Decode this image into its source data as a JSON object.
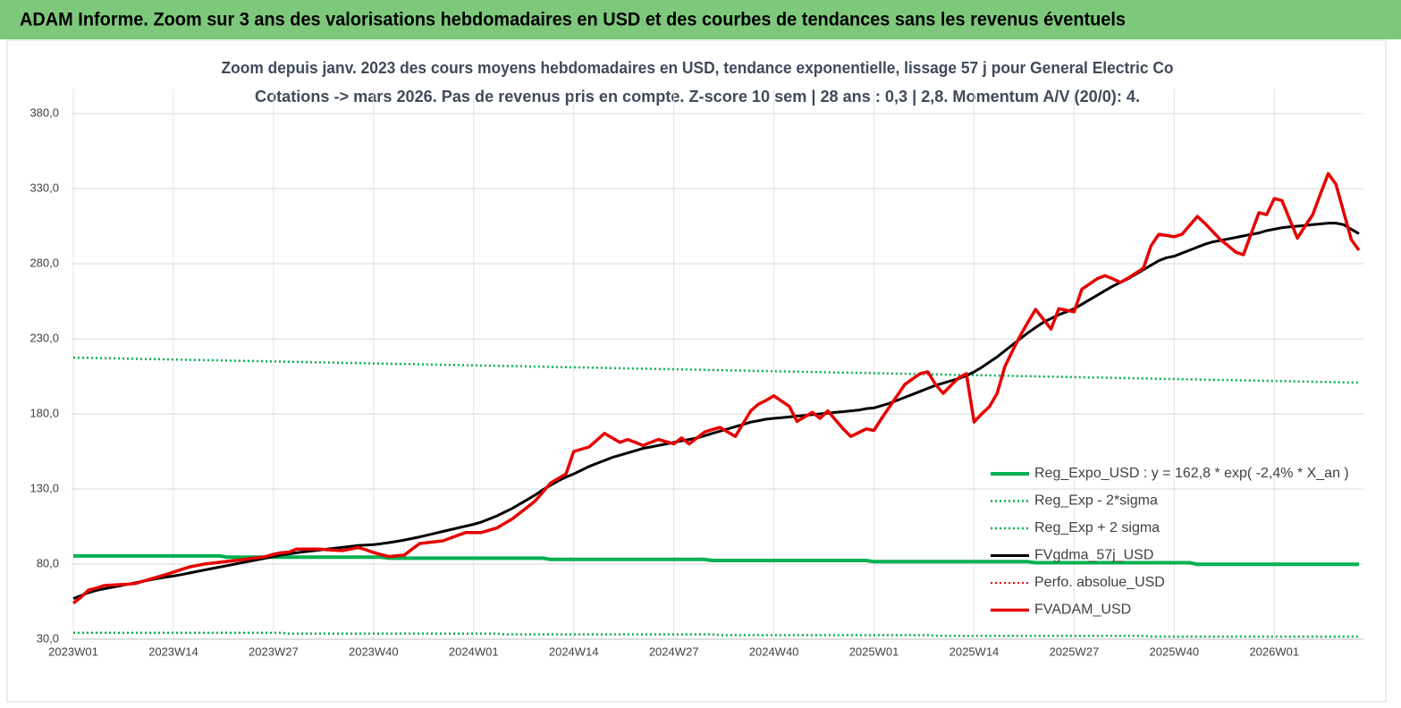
{
  "chart_data": {
    "type": "line",
    "title": "ADAM Informe. Zoom sur 3 ans des valorisations hebdomadaires en USD et des courbes de tendances sans les revenus éventuels",
    "subtitle": [
      "Zoom depuis janv. 2023 des cours moyens hebdomadaires en USD, tendance exponentielle, lissage 57 j pour General Electric Co",
      "Cotations -> mars 2026. Pas de revenus pris en  compte. Z-score 10 sem  | 28 ans : 0,3  | 2,8. Momentum A/V (20/0): 4."
    ],
    "categories": [
      "2023W01",
      null,
      null,
      null,
      null,
      null,
      null,
      null,
      null,
      null,
      null,
      null,
      null,
      "2023W14",
      null,
      null,
      null,
      null,
      null,
      null,
      null,
      null,
      null,
      null,
      null,
      null,
      "2023W27",
      null,
      null,
      null,
      null,
      null,
      null,
      null,
      null,
      null,
      null,
      null,
      null,
      "2023W40",
      null,
      null,
      null,
      null,
      null,
      null,
      null,
      null,
      null,
      null,
      null,
      null,
      "2024W01",
      null,
      null,
      null,
      null,
      null,
      null,
      null,
      null,
      null,
      null,
      null,
      null,
      "2024W14",
      null,
      null,
      null,
      null,
      null,
      null,
      null,
      null,
      null,
      null,
      null,
      null,
      "2024W27",
      null,
      null,
      null,
      null,
      null,
      null,
      null,
      null,
      null,
      null,
      null,
      null,
      "2024W40",
      null,
      null,
      null,
      null,
      null,
      null,
      null,
      null,
      null,
      null,
      null,
      null,
      "2025W01",
      null,
      null,
      null,
      null,
      null,
      null,
      null,
      null,
      null,
      null,
      null,
      null,
      "2025W14",
      null,
      null,
      null,
      null,
      null,
      null,
      null,
      null,
      null,
      null,
      null,
      null,
      "2025W27",
      null,
      null,
      null,
      null,
      null,
      null,
      null,
      null,
      null,
      null,
      null,
      null,
      "2025W40",
      null,
      null,
      null,
      null,
      null,
      null,
      null,
      null,
      null,
      null,
      null,
      null,
      "2026W01",
      null,
      null,
      null,
      null,
      null,
      null,
      null,
      null,
      null,
      null,
      null
    ],
    "ylim": [
      30,
      380
    ],
    "yticks": [
      {
        "value": 30,
        "label": "30,0"
      },
      {
        "value": 80,
        "label": "80,0"
      },
      {
        "value": 130,
        "label": "130,0"
      },
      {
        "value": 180,
        "label": "180,0"
      },
      {
        "value": 230,
        "label": "230,0"
      },
      {
        "value": 280,
        "label": "280,0"
      },
      {
        "value": 330,
        "label": "330,0"
      },
      {
        "value": 380,
        "label": "380,0"
      }
    ],
    "grid": true,
    "legend": "bottom-right",
    "series": [
      {
        "name": "Reg_Expo_USD : y = 162,8 * exp( -2,4% *  X_an )",
        "color": "#00b050",
        "style": "solid",
        "width": 4,
        "values": [
          85.4,
          85.4,
          85.4,
          85.4,
          85.4,
          85.4,
          85.4,
          85.4,
          85.4,
          85.4,
          85.4,
          85.4,
          85.4,
          85.4,
          85.4,
          85.4,
          85.4,
          85.4,
          85.4,
          85.4,
          84.6,
          84.6,
          84.6,
          84.6,
          84.6,
          84.6,
          84.6,
          84.6,
          84.6,
          84.6,
          84.6,
          84.6,
          84.6,
          84.6,
          84.6,
          84.6,
          84.6,
          84.6,
          84.6,
          84.6,
          84.6,
          83.9,
          83.9,
          83.9,
          83.9,
          83.9,
          83.9,
          83.9,
          83.9,
          83.9,
          83.9,
          83.9,
          83.9,
          83.9,
          83.9,
          83.9,
          83.9,
          83.9,
          83.9,
          83.9,
          83.9,
          83.9,
          83.1,
          83.1,
          83.1,
          83.1,
          83.1,
          83.1,
          83.1,
          83.1,
          83.1,
          83.1,
          83.1,
          83.1,
          83.1,
          83.1,
          83.1,
          83.1,
          83.1,
          83.1,
          83.1,
          83.1,
          83.1,
          82.4,
          82.4,
          82.4,
          82.4,
          82.4,
          82.4,
          82.4,
          82.4,
          82.4,
          82.4,
          82.4,
          82.4,
          82.4,
          82.4,
          82.4,
          82.4,
          82.4,
          82.4,
          82.4,
          82.4,
          82.4,
          81.6,
          81.6,
          81.6,
          81.6,
          81.6,
          81.6,
          81.6,
          81.6,
          81.6,
          81.6,
          81.6,
          81.6,
          81.6,
          81.6,
          81.6,
          81.6,
          81.6,
          81.6,
          81.6,
          81.6,
          81.6,
          80.9,
          80.9,
          80.9,
          80.9,
          80.9,
          80.9,
          80.9,
          80.9,
          80.9,
          80.9,
          80.9,
          80.9,
          80.9,
          80.9,
          80.9,
          80.9,
          80.9,
          80.9,
          80.9,
          80.9,
          80.9,
          79.8,
          79.8,
          79.8,
          79.8,
          79.8,
          79.8,
          79.8,
          79.8,
          79.8,
          79.8,
          79.8,
          79.8,
          79.8,
          79.8,
          79.8,
          79.8,
          79.8,
          79.8,
          79.8,
          79.8,
          79.8,
          79.8
        ]
      },
      {
        "name": "Reg_Exp - 2*sigma",
        "color": "#00b050",
        "style": "dotted",
        "width": 2.5,
        "values": [
          34.2,
          34.2,
          34.2,
          34.2,
          34.2,
          34.2,
          34.2,
          34.2,
          34.2,
          34.2,
          34.2,
          34.2,
          34.2,
          34.2,
          34.2,
          34.2,
          34.2,
          34.2,
          34.2,
          34.2,
          34.2,
          34.2,
          34.2,
          34.2,
          34.2,
          34.2,
          34.2,
          34.2,
          33.7,
          33.7,
          33.7,
          33.7,
          33.7,
          33.7,
          33.7,
          33.7,
          33.7,
          33.7,
          33.7,
          33.7,
          33.7,
          33.7,
          33.7,
          33.7,
          33.7,
          33.7,
          33.7,
          33.7,
          33.7,
          33.7,
          33.7,
          33.7,
          33.7,
          33.7,
          33.7,
          33.7,
          33.2,
          33.2,
          33.2,
          33.2,
          33.2,
          33.2,
          33.2,
          33.2,
          33.2,
          33.2,
          33.2,
          33.2,
          33.2,
          33.2,
          33.2,
          33.2,
          33.2,
          33.2,
          33.2,
          33.2,
          33.2,
          33.2,
          33.2,
          33.2,
          33.2,
          33.2,
          33.2,
          33.2,
          32.7,
          32.7,
          32.7,
          32.7,
          32.7,
          32.7,
          32.7,
          32.7,
          32.7,
          32.7,
          32.7,
          32.7,
          32.7,
          32.7,
          32.7,
          32.7,
          32.7,
          32.7,
          32.7,
          32.7,
          32.7,
          32.7,
          32.7,
          32.7,
          32.7,
          32.7,
          32.7,
          32.7,
          32.2,
          32.2,
          32.2,
          32.2,
          32.2,
          32.2,
          32.2,
          32.2,
          32.2,
          32.2,
          32.2,
          32.2,
          32.2,
          32.2,
          32.2,
          32.2,
          32.2,
          32.2,
          32.2,
          32.2,
          32.2,
          32.2,
          32.2,
          32.2,
          32.2,
          32.2,
          32.2,
          32.2,
          31.7,
          31.7,
          31.7,
          31.7,
          31.7,
          31.7,
          31.7,
          31.7,
          31.7,
          31.7,
          31.7,
          31.7,
          31.7,
          31.7,
          31.7,
          31.7,
          31.7,
          31.7,
          31.7,
          31.7,
          31.7,
          31.7,
          31.7,
          31.7,
          31.7,
          31.7,
          31.7,
          31.7
        ]
      },
      {
        "name": "Reg_Exp + 2 sigma",
        "color": "#00b050",
        "style": "dotted",
        "width": 2.5,
        "values": [
          217.5,
          217.4,
          217.3,
          217.2,
          217.1,
          217,
          216.9,
          216.8,
          216.7,
          216.6,
          216.5,
          216.4,
          216.3,
          216.2,
          216.1,
          216,
          215.9,
          215.8,
          215.7,
          215.6,
          215.5,
          215.4,
          215.3,
          215.2,
          215.1,
          215,
          214.9,
          214.8,
          214.7,
          214.6,
          214.5,
          214.4,
          214.3,
          214.2,
          214.1,
          214,
          213.9,
          213.8,
          213.7,
          213.6,
          213.5,
          213.4,
          213.3,
          213.2,
          213.1,
          213,
          212.9,
          212.8,
          212.7,
          212.6,
          212.5,
          212.4,
          212.3,
          212.2,
          212.1,
          212,
          211.9,
          211.8,
          211.7,
          211.6,
          211.5,
          211.4,
          211.3,
          211.2,
          211.1,
          211,
          210.9,
          210.8,
          210.7,
          210.6,
          210.5,
          210.4,
          210.3,
          210.2,
          210.1,
          210,
          209.9,
          209.8,
          209.7,
          209.6,
          209.5,
          209.4,
          209.3,
          209.2,
          209.1,
          209,
          208.9,
          208.8,
          208.7,
          208.6,
          208.5,
          208.4,
          208.3,
          208.2,
          208.1,
          208,
          207.9,
          207.8,
          207.7,
          207.6,
          207.5,
          207.4,
          207.3,
          207.2,
          207.1,
          207,
          206.9,
          206.8,
          206.7,
          206.6,
          206.5,
          206.4,
          206.3,
          206.2,
          206.1,
          206,
          205.9,
          205.8,
          205.7,
          205.6,
          205.5,
          205.4,
          205.3,
          205.2,
          205.1,
          205,
          204.9,
          204.8,
          204.7,
          204.6,
          204.5,
          204.4,
          204.3,
          204.2,
          204.1,
          204,
          203.9,
          203.8,
          203.7,
          203.6,
          203.5,
          203.4,
          203.3,
          203.2,
          203.1,
          203,
          202.9,
          202.8,
          202.7,
          202.6,
          202.5,
          202.4,
          202.3,
          202.2,
          202.1,
          202,
          201.9,
          201.8,
          201.7,
          201.6,
          201.5,
          201.4,
          201.3,
          201.2,
          201.1,
          201,
          200.9,
          200.8
        ]
      },
      {
        "name": "FVgdma_57j_USD",
        "color": "#000000",
        "style": "solid",
        "width": 3,
        "values": [
          57,
          59,
          61,
          62.5,
          63.5,
          64.5,
          65.5,
          66.5,
          67.5,
          68.5,
          69.5,
          70.5,
          71.3,
          72,
          73,
          74,
          75,
          76,
          77,
          78,
          79,
          80,
          81,
          82,
          83,
          84,
          85,
          86,
          86.8,
          87.5,
          88.2,
          88.8,
          89.4,
          90,
          90.6,
          91.2,
          91.8,
          92.3,
          92.7,
          93,
          93.6,
          94.3,
          95.1,
          96,
          97,
          98.1,
          99.3,
          100.5,
          101.7,
          102.9,
          104.1,
          105.3,
          106.5,
          108,
          110,
          112,
          114.5,
          117,
          120,
          123,
          126,
          129.5,
          132.5,
          135.5,
          138,
          140,
          142.5,
          145,
          147,
          149,
          151,
          152.5,
          154,
          155.5,
          157,
          158,
          159,
          160,
          161,
          162,
          163,
          164,
          165.5,
          167,
          168.5,
          170,
          171.5,
          173,
          174.5,
          175.5,
          176.5,
          177,
          177.5,
          178,
          178.5,
          179,
          179.5,
          180,
          180.5,
          181,
          181.5,
          182,
          182.5,
          183.5,
          184,
          185.5,
          187,
          189,
          191,
          193,
          195,
          197,
          199,
          200.5,
          202,
          203.5,
          205.5,
          208,
          211,
          214.5,
          218,
          222,
          226,
          230,
          234,
          237.5,
          241,
          243.5,
          246,
          248,
          250,
          253,
          256,
          259,
          262,
          265,
          267.5,
          270,
          273,
          276,
          279,
          282,
          284,
          285,
          287,
          289,
          291,
          293,
          294.5,
          295.5,
          296.5,
          297.5,
          298.5,
          299.5,
          300.5,
          302,
          303,
          304,
          304.5,
          305,
          305.5,
          306,
          306.5,
          307,
          307,
          306,
          303,
          300
        ]
      },
      {
        "name": "Perfo. absolue_USD",
        "color": "#e60000",
        "style": "dotted",
        "width": 2
      },
      {
        "name": "FVADAM_USD",
        "color": "#e60000",
        "style": "solid",
        "width": 3.5,
        "values": [
          54,
          58,
          62.7,
          64,
          65.7,
          66,
          66.3,
          66.6,
          67,
          68.5,
          70,
          71.5,
          73,
          74.6,
          76.3,
          78,
          79,
          80,
          80.6,
          81.2,
          81.8,
          82.4,
          83,
          83.7,
          84.3,
          85,
          86.5,
          87.5,
          88,
          90,
          90,
          90,
          90,
          89.5,
          89.2,
          89,
          90,
          91,
          89.5,
          87.7,
          86.3,
          85,
          85.5,
          86,
          90,
          93.7,
          94.3,
          94.9,
          95.5,
          97.3,
          99.2,
          101,
          101,
          101,
          102.5,
          104,
          107,
          110,
          114,
          118,
          122,
          128,
          134,
          137,
          140,
          155,
          156.5,
          158,
          162.5,
          167,
          164,
          161,
          163,
          161,
          159,
          161,
          163,
          161.5,
          160,
          164,
          160,
          164,
          168,
          169.5,
          171,
          168,
          165,
          173.5,
          182,
          186.5,
          189,
          192,
          188.5,
          185,
          175,
          178,
          181,
          177,
          182,
          176,
          170,
          165,
          167.5,
          170,
          169,
          177,
          184.5,
          192,
          199.6,
          203.2,
          206.8,
          208,
          199.6,
          193.7,
          199,
          204,
          206.8,
          174.6,
          180,
          184.8,
          193.7,
          211.5,
          222,
          232,
          241,
          249.6,
          243,
          236.5,
          250,
          249,
          248,
          263,
          266.5,
          270,
          272,
          270,
          267.5,
          270.5,
          273.7,
          277,
          292,
          299.6,
          298.8,
          298,
          299.6,
          305.5,
          311.5,
          306.8,
          301.4,
          296,
          292,
          287.7,
          286,
          300,
          314,
          312.7,
          323.4,
          322,
          309.5,
          297,
          305,
          312.7,
          326.4,
          340,
          333,
          314.5,
          296,
          289
        ]
      }
    ]
  }
}
